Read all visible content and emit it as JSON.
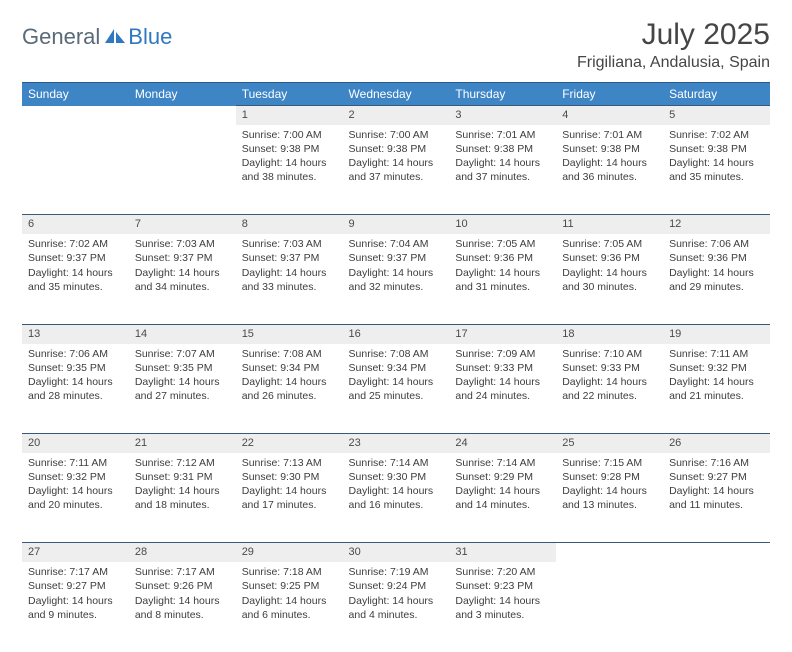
{
  "brand": {
    "part1": "General",
    "part2": "Blue"
  },
  "title": "July 2025",
  "location": "Frigiliana, Andalusia, Spain",
  "colors": {
    "header_bg": "#3e85c6",
    "header_border": "#385a7a",
    "daynum_bg": "#eeeeee",
    "text": "#3d3d3d",
    "logo_gray": "#5a6a78",
    "logo_blue": "#2f78c2"
  },
  "weekdays": [
    "Sunday",
    "Monday",
    "Tuesday",
    "Wednesday",
    "Thursday",
    "Friday",
    "Saturday"
  ],
  "weeks": [
    [
      null,
      null,
      {
        "n": "1",
        "sr": "Sunrise: 7:00 AM",
        "ss": "Sunset: 9:38 PM",
        "dl": "Daylight: 14 hours and 38 minutes."
      },
      {
        "n": "2",
        "sr": "Sunrise: 7:00 AM",
        "ss": "Sunset: 9:38 PM",
        "dl": "Daylight: 14 hours and 37 minutes."
      },
      {
        "n": "3",
        "sr": "Sunrise: 7:01 AM",
        "ss": "Sunset: 9:38 PM",
        "dl": "Daylight: 14 hours and 37 minutes."
      },
      {
        "n": "4",
        "sr": "Sunrise: 7:01 AM",
        "ss": "Sunset: 9:38 PM",
        "dl": "Daylight: 14 hours and 36 minutes."
      },
      {
        "n": "5",
        "sr": "Sunrise: 7:02 AM",
        "ss": "Sunset: 9:38 PM",
        "dl": "Daylight: 14 hours and 35 minutes."
      }
    ],
    [
      {
        "n": "6",
        "sr": "Sunrise: 7:02 AM",
        "ss": "Sunset: 9:37 PM",
        "dl": "Daylight: 14 hours and 35 minutes."
      },
      {
        "n": "7",
        "sr": "Sunrise: 7:03 AM",
        "ss": "Sunset: 9:37 PM",
        "dl": "Daylight: 14 hours and 34 minutes."
      },
      {
        "n": "8",
        "sr": "Sunrise: 7:03 AM",
        "ss": "Sunset: 9:37 PM",
        "dl": "Daylight: 14 hours and 33 minutes."
      },
      {
        "n": "9",
        "sr": "Sunrise: 7:04 AM",
        "ss": "Sunset: 9:37 PM",
        "dl": "Daylight: 14 hours and 32 minutes."
      },
      {
        "n": "10",
        "sr": "Sunrise: 7:05 AM",
        "ss": "Sunset: 9:36 PM",
        "dl": "Daylight: 14 hours and 31 minutes."
      },
      {
        "n": "11",
        "sr": "Sunrise: 7:05 AM",
        "ss": "Sunset: 9:36 PM",
        "dl": "Daylight: 14 hours and 30 minutes."
      },
      {
        "n": "12",
        "sr": "Sunrise: 7:06 AM",
        "ss": "Sunset: 9:36 PM",
        "dl": "Daylight: 14 hours and 29 minutes."
      }
    ],
    [
      {
        "n": "13",
        "sr": "Sunrise: 7:06 AM",
        "ss": "Sunset: 9:35 PM",
        "dl": "Daylight: 14 hours and 28 minutes."
      },
      {
        "n": "14",
        "sr": "Sunrise: 7:07 AM",
        "ss": "Sunset: 9:35 PM",
        "dl": "Daylight: 14 hours and 27 minutes."
      },
      {
        "n": "15",
        "sr": "Sunrise: 7:08 AM",
        "ss": "Sunset: 9:34 PM",
        "dl": "Daylight: 14 hours and 26 minutes."
      },
      {
        "n": "16",
        "sr": "Sunrise: 7:08 AM",
        "ss": "Sunset: 9:34 PM",
        "dl": "Daylight: 14 hours and 25 minutes."
      },
      {
        "n": "17",
        "sr": "Sunrise: 7:09 AM",
        "ss": "Sunset: 9:33 PM",
        "dl": "Daylight: 14 hours and 24 minutes."
      },
      {
        "n": "18",
        "sr": "Sunrise: 7:10 AM",
        "ss": "Sunset: 9:33 PM",
        "dl": "Daylight: 14 hours and 22 minutes."
      },
      {
        "n": "19",
        "sr": "Sunrise: 7:11 AM",
        "ss": "Sunset: 9:32 PM",
        "dl": "Daylight: 14 hours and 21 minutes."
      }
    ],
    [
      {
        "n": "20",
        "sr": "Sunrise: 7:11 AM",
        "ss": "Sunset: 9:32 PM",
        "dl": "Daylight: 14 hours and 20 minutes."
      },
      {
        "n": "21",
        "sr": "Sunrise: 7:12 AM",
        "ss": "Sunset: 9:31 PM",
        "dl": "Daylight: 14 hours and 18 minutes."
      },
      {
        "n": "22",
        "sr": "Sunrise: 7:13 AM",
        "ss": "Sunset: 9:30 PM",
        "dl": "Daylight: 14 hours and 17 minutes."
      },
      {
        "n": "23",
        "sr": "Sunrise: 7:14 AM",
        "ss": "Sunset: 9:30 PM",
        "dl": "Daylight: 14 hours and 16 minutes."
      },
      {
        "n": "24",
        "sr": "Sunrise: 7:14 AM",
        "ss": "Sunset: 9:29 PM",
        "dl": "Daylight: 14 hours and 14 minutes."
      },
      {
        "n": "25",
        "sr": "Sunrise: 7:15 AM",
        "ss": "Sunset: 9:28 PM",
        "dl": "Daylight: 14 hours and 13 minutes."
      },
      {
        "n": "26",
        "sr": "Sunrise: 7:16 AM",
        "ss": "Sunset: 9:27 PM",
        "dl": "Daylight: 14 hours and 11 minutes."
      }
    ],
    [
      {
        "n": "27",
        "sr": "Sunrise: 7:17 AM",
        "ss": "Sunset: 9:27 PM",
        "dl": "Daylight: 14 hours and 9 minutes."
      },
      {
        "n": "28",
        "sr": "Sunrise: 7:17 AM",
        "ss": "Sunset: 9:26 PM",
        "dl": "Daylight: 14 hours and 8 minutes."
      },
      {
        "n": "29",
        "sr": "Sunrise: 7:18 AM",
        "ss": "Sunset: 9:25 PM",
        "dl": "Daylight: 14 hours and 6 minutes."
      },
      {
        "n": "30",
        "sr": "Sunrise: 7:19 AM",
        "ss": "Sunset: 9:24 PM",
        "dl": "Daylight: 14 hours and 4 minutes."
      },
      {
        "n": "31",
        "sr": "Sunrise: 7:20 AM",
        "ss": "Sunset: 9:23 PM",
        "dl": "Daylight: 14 hours and 3 minutes."
      },
      null,
      null
    ]
  ]
}
